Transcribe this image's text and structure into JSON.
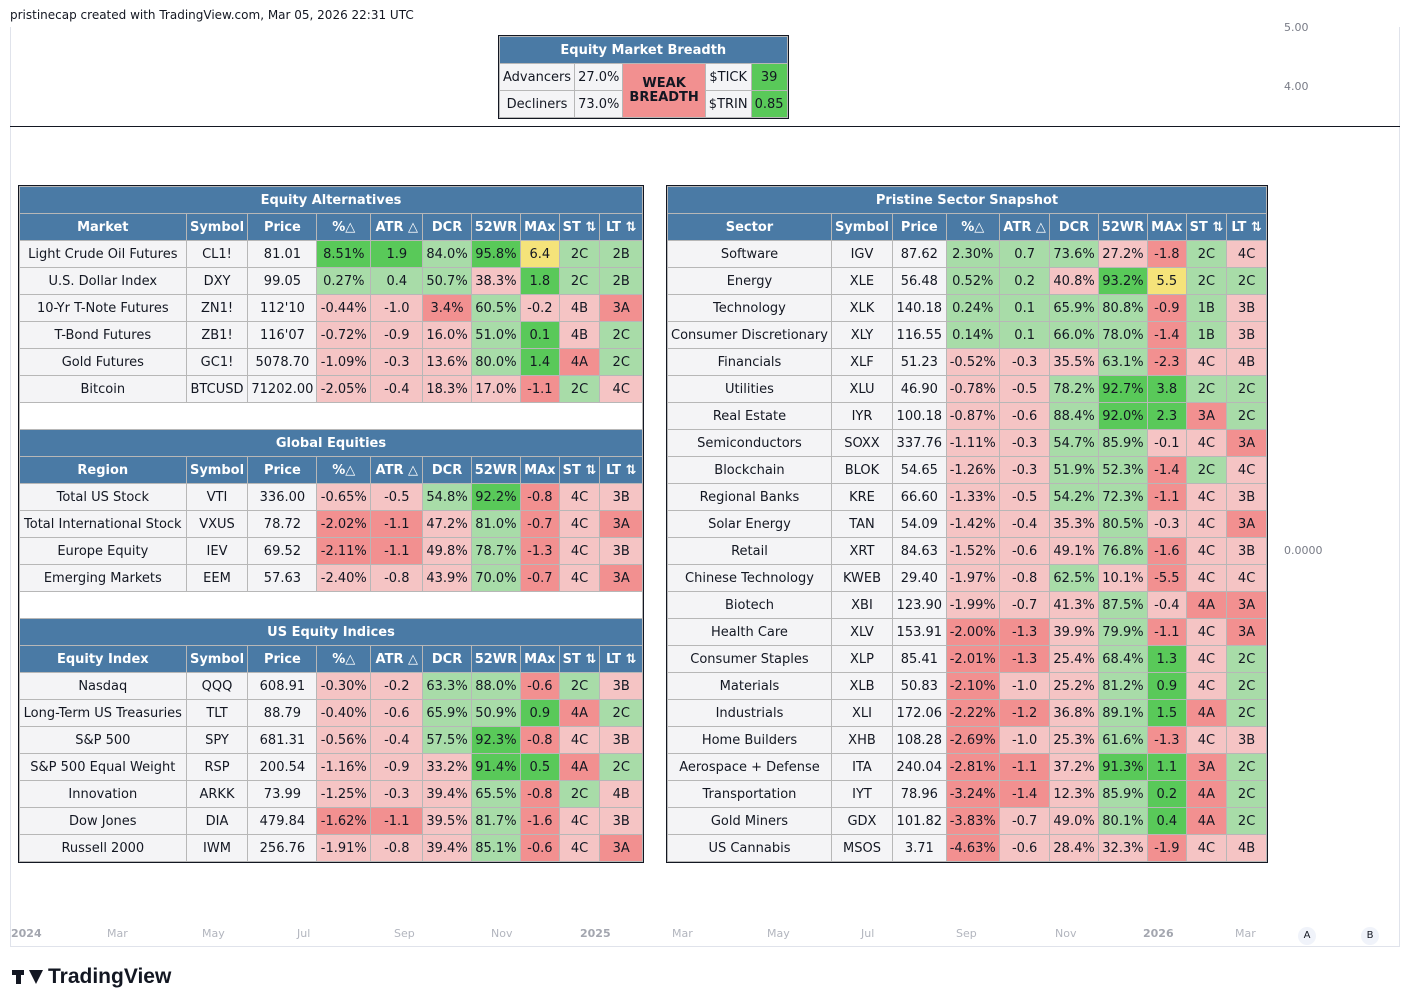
{
  "header": {
    "caption": "pristinecap created with TradingView.com, Mar 05, 2026 22:31 UTC"
  },
  "price_scale": {
    "top_partial": "5.00",
    "mid": "4.00",
    "lower": "0.0000"
  },
  "time_axis": {
    "labels": [
      "2024",
      "Mar",
      "May",
      "Jul",
      "Sep",
      "Nov",
      "2025",
      "Mar",
      "May",
      "Jul",
      "Sep",
      "Nov",
      "2026",
      "Mar"
    ],
    "buttons": [
      "A",
      "B"
    ]
  },
  "brand": {
    "name": "TradingView"
  },
  "colors": {
    "header_blue": "#4a7aa5",
    "green_light": "#a8dca8",
    "green_strong": "#59c959",
    "red_light": "#f5c4c4",
    "red_strong": "#f29090",
    "yellow": "#f5e37a"
  },
  "breadth": {
    "title": "Equity Market Breadth",
    "advancers_label": "Advancers",
    "advancers_value": "27.0%",
    "decliners_label": "Decliners",
    "decliners_value": "73.0%",
    "status": "WEAK BREADTH",
    "tick_label": "$TICK",
    "tick_value": "39",
    "trin_label": "$TRIN",
    "trin_value": "0.85"
  },
  "left_table": {
    "columns_tail": [
      "Symbol",
      "Price",
      "%△",
      "ATR △",
      "DCR",
      "52WR",
      "MAx",
      "ST ⇅",
      "LT ⇅"
    ],
    "sections": [
      {
        "title": "Equity Alternatives",
        "first_col": "Market",
        "rows": [
          {
            "cells": [
              "Light Crude Oil Futures",
              "CL1!",
              "81.01",
              "8.51%",
              "1.9",
              "84.0%",
              "95.8%",
              "6.4",
              "2C",
              "2B"
            ],
            "c": [
              "n",
              "n",
              "n",
              "G",
              "G",
              "g",
              "G",
              "y",
              "g",
              "g"
            ]
          },
          {
            "cells": [
              "U.S. Dollar Index",
              "DXY",
              "99.05",
              "0.27%",
              "0.4",
              "50.7%",
              "38.3%",
              "1.8",
              "2C",
              "2B"
            ],
            "c": [
              "n",
              "n",
              "n",
              "g",
              "g",
              "g",
              "r",
              "G",
              "g",
              "g"
            ]
          },
          {
            "cells": [
              "10-Yr T-Note Futures",
              "ZN1!",
              "112'10",
              "-0.44%",
              "-1.0",
              "3.4%",
              "60.5%",
              "-0.2",
              "4B",
              "3A"
            ],
            "c": [
              "n",
              "n",
              "n",
              "r",
              "r",
              "R",
              "g",
              "r",
              "r",
              "R"
            ]
          },
          {
            "cells": [
              "T-Bond Futures",
              "ZB1!",
              "116'07",
              "-0.72%",
              "-0.9",
              "16.0%",
              "51.0%",
              "0.1",
              "4B",
              "2C"
            ],
            "c": [
              "n",
              "n",
              "n",
              "r",
              "r",
              "r",
              "g",
              "G",
              "r",
              "g"
            ]
          },
          {
            "cells": [
              "Gold Futures",
              "GC1!",
              "5078.70",
              "-1.09%",
              "-0.3",
              "13.6%",
              "80.0%",
              "1.4",
              "4A",
              "2C"
            ],
            "c": [
              "n",
              "n",
              "n",
              "r",
              "r",
              "r",
              "g",
              "G",
              "R",
              "g"
            ]
          },
          {
            "cells": [
              "Bitcoin",
              "BTCUSD",
              "71202.00",
              "-2.05%",
              "-0.4",
              "18.3%",
              "17.0%",
              "-1.1",
              "2C",
              "4C"
            ],
            "c": [
              "n",
              "n",
              "n",
              "r",
              "r",
              "r",
              "r",
              "R",
              "g",
              "r"
            ]
          }
        ]
      },
      {
        "title": "Global Equities",
        "first_col": "Region",
        "rows": [
          {
            "cells": [
              "Total US Stock",
              "VTI",
              "336.00",
              "-0.65%",
              "-0.5",
              "54.8%",
              "92.2%",
              "-0.8",
              "4C",
              "3B"
            ],
            "c": [
              "n",
              "n",
              "n",
              "r",
              "r",
              "g",
              "G",
              "R",
              "r",
              "r"
            ]
          },
          {
            "cells": [
              "Total International Stock",
              "VXUS",
              "78.72",
              "-2.02%",
              "-1.1",
              "47.2%",
              "81.0%",
              "-0.7",
              "4C",
              "3A"
            ],
            "c": [
              "n",
              "n",
              "n",
              "R",
              "R",
              "r",
              "g",
              "R",
              "r",
              "R"
            ]
          },
          {
            "cells": [
              "Europe Equity",
              "IEV",
              "69.52",
              "-2.11%",
              "-1.1",
              "49.8%",
              "78.7%",
              "-1.3",
              "4C",
              "3B"
            ],
            "c": [
              "n",
              "n",
              "n",
              "R",
              "R",
              "r",
              "g",
              "R",
              "r",
              "r"
            ]
          },
          {
            "cells": [
              "Emerging Markets",
              "EEM",
              "57.63",
              "-2.40%",
              "-0.8",
              "43.9%",
              "70.0%",
              "-0.7",
              "4C",
              "3A"
            ],
            "c": [
              "n",
              "n",
              "n",
              "r",
              "r",
              "r",
              "g",
              "R",
              "r",
              "R"
            ]
          }
        ]
      },
      {
        "title": "US Equity Indices",
        "first_col": "Equity Index",
        "rows": [
          {
            "cells": [
              "Nasdaq",
              "QQQ",
              "608.91",
              "-0.30%",
              "-0.2",
              "63.3%",
              "88.0%",
              "-0.6",
              "2C",
              "3B"
            ],
            "c": [
              "n",
              "n",
              "n",
              "r",
              "r",
              "g",
              "g",
              "R",
              "g",
              "r"
            ]
          },
          {
            "cells": [
              "Long-Term US Treasuries",
              "TLT",
              "88.79",
              "-0.40%",
              "-0.6",
              "65.9%",
              "50.9%",
              "0.9",
              "4A",
              "2C"
            ],
            "c": [
              "n",
              "n",
              "n",
              "r",
              "r",
              "g",
              "g",
              "G",
              "R",
              "g"
            ]
          },
          {
            "cells": [
              "S&P 500",
              "SPY",
              "681.31",
              "-0.56%",
              "-0.4",
              "57.5%",
              "92.3%",
              "-0.8",
              "4C",
              "3B"
            ],
            "c": [
              "n",
              "n",
              "n",
              "r",
              "r",
              "g",
              "G",
              "R",
              "r",
              "r"
            ]
          },
          {
            "cells": [
              "S&P 500 Equal Weight",
              "RSP",
              "200.54",
              "-1.16%",
              "-0.9",
              "33.2%",
              "91.4%",
              "0.5",
              "4A",
              "2C"
            ],
            "c": [
              "n",
              "n",
              "n",
              "r",
              "r",
              "r",
              "G",
              "G",
              "R",
              "g"
            ]
          },
          {
            "cells": [
              "Innovation",
              "ARKK",
              "73.99",
              "-1.25%",
              "-0.3",
              "39.4%",
              "65.5%",
              "-0.8",
              "2C",
              "4B"
            ],
            "c": [
              "n",
              "n",
              "n",
              "r",
              "r",
              "r",
              "g",
              "R",
              "g",
              "r"
            ]
          },
          {
            "cells": [
              "Dow Jones",
              "DIA",
              "479.84",
              "-1.62%",
              "-1.1",
              "39.5%",
              "81.7%",
              "-1.6",
              "4C",
              "3B"
            ],
            "c": [
              "n",
              "n",
              "n",
              "R",
              "R",
              "r",
              "g",
              "R",
              "r",
              "r"
            ]
          },
          {
            "cells": [
              "Russell 2000",
              "IWM",
              "256.76",
              "-1.91%",
              "-0.8",
              "39.4%",
              "85.1%",
              "-0.6",
              "4C",
              "3A"
            ],
            "c": [
              "n",
              "n",
              "n",
              "r",
              "r",
              "r",
              "g",
              "R",
              "r",
              "R"
            ]
          }
        ]
      }
    ]
  },
  "right_table": {
    "title": "Pristine Sector Snapshot",
    "columns": [
      "Sector",
      "Symbol",
      "Price",
      "%△",
      "ATR △",
      "DCR",
      "52WR",
      "MAx",
      "ST ⇅",
      "LT ⇅"
    ],
    "rows": [
      {
        "cells": [
          "Software",
          "IGV",
          "87.62",
          "2.30%",
          "0.7",
          "73.6%",
          "27.2%",
          "-1.8",
          "2C",
          "4C"
        ],
        "c": [
          "n",
          "n",
          "n",
          "g",
          "g",
          "g",
          "r",
          "R",
          "g",
          "r"
        ]
      },
      {
        "cells": [
          "Energy",
          "XLE",
          "56.48",
          "0.52%",
          "0.2",
          "40.8%",
          "93.2%",
          "5.5",
          "2C",
          "2C"
        ],
        "c": [
          "n",
          "n",
          "n",
          "g",
          "g",
          "r",
          "G",
          "y",
          "g",
          "g"
        ]
      },
      {
        "cells": [
          "Technology",
          "XLK",
          "140.18",
          "0.24%",
          "0.1",
          "65.9%",
          "80.8%",
          "-0.9",
          "1B",
          "3B"
        ],
        "c": [
          "n",
          "n",
          "n",
          "g",
          "g",
          "g",
          "g",
          "R",
          "g",
          "r"
        ]
      },
      {
        "cells": [
          "Consumer Discretionary",
          "XLY",
          "116.55",
          "0.14%",
          "0.1",
          "66.0%",
          "78.0%",
          "-1.4",
          "1B",
          "3B"
        ],
        "c": [
          "n",
          "n",
          "n",
          "g",
          "g",
          "g",
          "g",
          "R",
          "g",
          "r"
        ]
      },
      {
        "cells": [
          "Financials",
          "XLF",
          "51.23",
          "-0.52%",
          "-0.3",
          "35.5%",
          "63.1%",
          "-2.3",
          "4C",
          "4B"
        ],
        "c": [
          "n",
          "n",
          "n",
          "r",
          "r",
          "r",
          "g",
          "R",
          "r",
          "r"
        ]
      },
      {
        "cells": [
          "Utilities",
          "XLU",
          "46.90",
          "-0.78%",
          "-0.5",
          "78.2%",
          "92.7%",
          "3.8",
          "2C",
          "2C"
        ],
        "c": [
          "n",
          "n",
          "n",
          "r",
          "r",
          "g",
          "G",
          "G",
          "g",
          "g"
        ]
      },
      {
        "cells": [
          "Real Estate",
          "IYR",
          "100.18",
          "-0.87%",
          "-0.6",
          "88.4%",
          "92.0%",
          "2.3",
          "3A",
          "2C"
        ],
        "c": [
          "n",
          "n",
          "n",
          "r",
          "r",
          "g",
          "G",
          "G",
          "R",
          "g"
        ]
      },
      {
        "cells": [
          "Semiconductors",
          "SOXX",
          "337.76",
          "-1.11%",
          "-0.3",
          "54.7%",
          "85.9%",
          "-0.1",
          "4C",
          "3A"
        ],
        "c": [
          "n",
          "n",
          "n",
          "r",
          "r",
          "g",
          "g",
          "r",
          "r",
          "R"
        ]
      },
      {
        "cells": [
          "Blockchain",
          "BLOK",
          "54.65",
          "-1.26%",
          "-0.3",
          "51.9%",
          "52.3%",
          "-1.4",
          "2C",
          "4C"
        ],
        "c": [
          "n",
          "n",
          "n",
          "r",
          "r",
          "g",
          "g",
          "R",
          "g",
          "r"
        ]
      },
      {
        "cells": [
          "Regional Banks",
          "KRE",
          "66.60",
          "-1.33%",
          "-0.5",
          "54.2%",
          "72.3%",
          "-1.1",
          "4C",
          "3B"
        ],
        "c": [
          "n",
          "n",
          "n",
          "r",
          "r",
          "g",
          "g",
          "R",
          "r",
          "r"
        ]
      },
      {
        "cells": [
          "Solar Energy",
          "TAN",
          "54.09",
          "-1.42%",
          "-0.4",
          "35.3%",
          "80.5%",
          "-0.3",
          "4C",
          "3A"
        ],
        "c": [
          "n",
          "n",
          "n",
          "r",
          "r",
          "r",
          "g",
          "r",
          "r",
          "R"
        ]
      },
      {
        "cells": [
          "Retail",
          "XRT",
          "84.63",
          "-1.52%",
          "-0.6",
          "49.1%",
          "76.8%",
          "-1.6",
          "4C",
          "3B"
        ],
        "c": [
          "n",
          "n",
          "n",
          "r",
          "r",
          "r",
          "g",
          "R",
          "r",
          "r"
        ]
      },
      {
        "cells": [
          "Chinese Technology",
          "KWEB",
          "29.40",
          "-1.97%",
          "-0.8",
          "62.5%",
          "10.1%",
          "-5.5",
          "4C",
          "4C"
        ],
        "c": [
          "n",
          "n",
          "n",
          "r",
          "r",
          "g",
          "r",
          "R",
          "r",
          "r"
        ]
      },
      {
        "cells": [
          "Biotech",
          "XBI",
          "123.90",
          "-1.99%",
          "-0.7",
          "41.3%",
          "87.5%",
          "-0.4",
          "4A",
          "3A"
        ],
        "c": [
          "n",
          "n",
          "n",
          "r",
          "r",
          "r",
          "g",
          "r",
          "R",
          "R"
        ]
      },
      {
        "cells": [
          "Health Care",
          "XLV",
          "153.91",
          "-2.00%",
          "-1.3",
          "39.9%",
          "79.9%",
          "-1.1",
          "4C",
          "3A"
        ],
        "c": [
          "n",
          "n",
          "n",
          "R",
          "R",
          "r",
          "g",
          "R",
          "r",
          "R"
        ]
      },
      {
        "cells": [
          "Consumer Staples",
          "XLP",
          "85.41",
          "-2.01%",
          "-1.3",
          "25.4%",
          "68.4%",
          "1.3",
          "4C",
          "2C"
        ],
        "c": [
          "n",
          "n",
          "n",
          "R",
          "R",
          "r",
          "g",
          "G",
          "r",
          "g"
        ]
      },
      {
        "cells": [
          "Materials",
          "XLB",
          "50.83",
          "-2.10%",
          "-1.0",
          "25.2%",
          "81.2%",
          "0.9",
          "4C",
          "2C"
        ],
        "c": [
          "n",
          "n",
          "n",
          "R",
          "r",
          "r",
          "g",
          "G",
          "r",
          "g"
        ]
      },
      {
        "cells": [
          "Industrials",
          "XLI",
          "172.06",
          "-2.22%",
          "-1.2",
          "36.8%",
          "89.1%",
          "1.5",
          "4A",
          "2C"
        ],
        "c": [
          "n",
          "n",
          "n",
          "R",
          "R",
          "r",
          "g",
          "G",
          "R",
          "g"
        ]
      },
      {
        "cells": [
          "Home Builders",
          "XHB",
          "108.28",
          "-2.69%",
          "-1.0",
          "25.3%",
          "61.6%",
          "-1.3",
          "4C",
          "3B"
        ],
        "c": [
          "n",
          "n",
          "n",
          "R",
          "r",
          "r",
          "g",
          "R",
          "r",
          "r"
        ]
      },
      {
        "cells": [
          "Aerospace + Defense",
          "ITA",
          "240.04",
          "-2.81%",
          "-1.1",
          "37.2%",
          "91.3%",
          "1.1",
          "3A",
          "2C"
        ],
        "c": [
          "n",
          "n",
          "n",
          "R",
          "R",
          "r",
          "G",
          "G",
          "R",
          "g"
        ]
      },
      {
        "cells": [
          "Transportation",
          "IYT",
          "78.96",
          "-3.24%",
          "-1.4",
          "12.3%",
          "85.9%",
          "0.2",
          "4A",
          "2C"
        ],
        "c": [
          "n",
          "n",
          "n",
          "R",
          "R",
          "r",
          "g",
          "G",
          "R",
          "g"
        ]
      },
      {
        "cells": [
          "Gold Miners",
          "GDX",
          "101.82",
          "-3.83%",
          "-0.7",
          "49.0%",
          "80.1%",
          "0.4",
          "4A",
          "2C"
        ],
        "c": [
          "n",
          "n",
          "n",
          "R",
          "r",
          "r",
          "g",
          "G",
          "R",
          "g"
        ]
      },
      {
        "cells": [
          "US Cannabis",
          "MSOS",
          "3.71",
          "-4.63%",
          "-0.6",
          "28.4%",
          "32.3%",
          "-1.9",
          "4C",
          "4B"
        ],
        "c": [
          "n",
          "n",
          "n",
          "R",
          "r",
          "r",
          "r",
          "R",
          "r",
          "r"
        ]
      }
    ]
  }
}
